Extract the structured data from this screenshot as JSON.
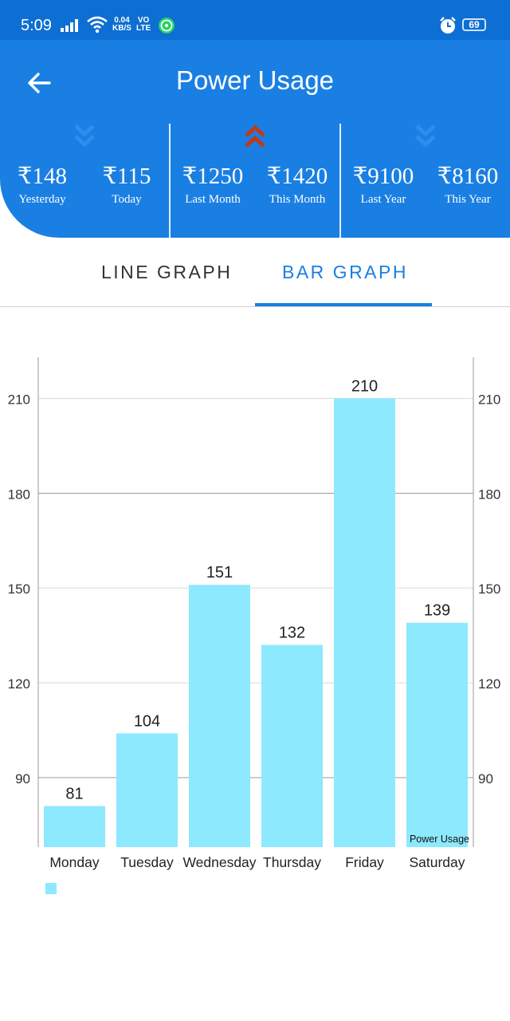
{
  "status_bar": {
    "time": "5:09",
    "net_speed_value": "0.04",
    "net_speed_unit": "KB/S",
    "volte_top": "VO",
    "volte_bottom": "LTE",
    "battery": "69",
    "icons": [
      "signal-icon",
      "wifi-icon",
      "whatsapp-icon",
      "alarm-icon",
      "battery-icon"
    ]
  },
  "header": {
    "title": "Power Usage",
    "back_icon": "arrow-left-icon",
    "groups": [
      {
        "trend": "down",
        "trend_color": "#2f8cf0",
        "stats": [
          {
            "value": "₹148",
            "label": "Yesterday"
          },
          {
            "value": "₹115",
            "label": "Today"
          }
        ]
      },
      {
        "trend": "up",
        "trend_color": "#c0391b",
        "stats": [
          {
            "value": "₹1250",
            "label": "Last Month"
          },
          {
            "value": "₹1420",
            "label": "This Month"
          }
        ]
      },
      {
        "trend": "down",
        "trend_color": "#2f8cf0",
        "stats": [
          {
            "value": "₹9100",
            "label": "Last Year"
          },
          {
            "value": "₹8160",
            "label": "This Year"
          }
        ]
      }
    ]
  },
  "tabs": {
    "items": [
      {
        "label": "LINE GRAPH",
        "selected": false
      },
      {
        "label": "BAR GRAPH",
        "selected": true
      }
    ]
  },
  "colors": {
    "primary": "#1a7fe3",
    "status_bar": "#0d6fd3",
    "bar": "#8de9fd",
    "up_arrow": "#c0391b",
    "down_arrow": "#2f8cf0"
  },
  "chart_data": {
    "type": "bar",
    "categories": [
      "Monday",
      "Tuesday",
      "Wednesday",
      "Thursday",
      "Friday",
      "Saturday"
    ],
    "series": [
      {
        "name": "",
        "values": [
          81,
          104,
          151,
          132,
          210,
          139
        ]
      }
    ],
    "ylim": [
      68,
      223
    ],
    "y_ticks": [
      90,
      120,
      150,
      180,
      210
    ],
    "grid": true,
    "description_label": "Power Usage",
    "legend": "bottom-left",
    "bar_color": "#8de9fd"
  }
}
